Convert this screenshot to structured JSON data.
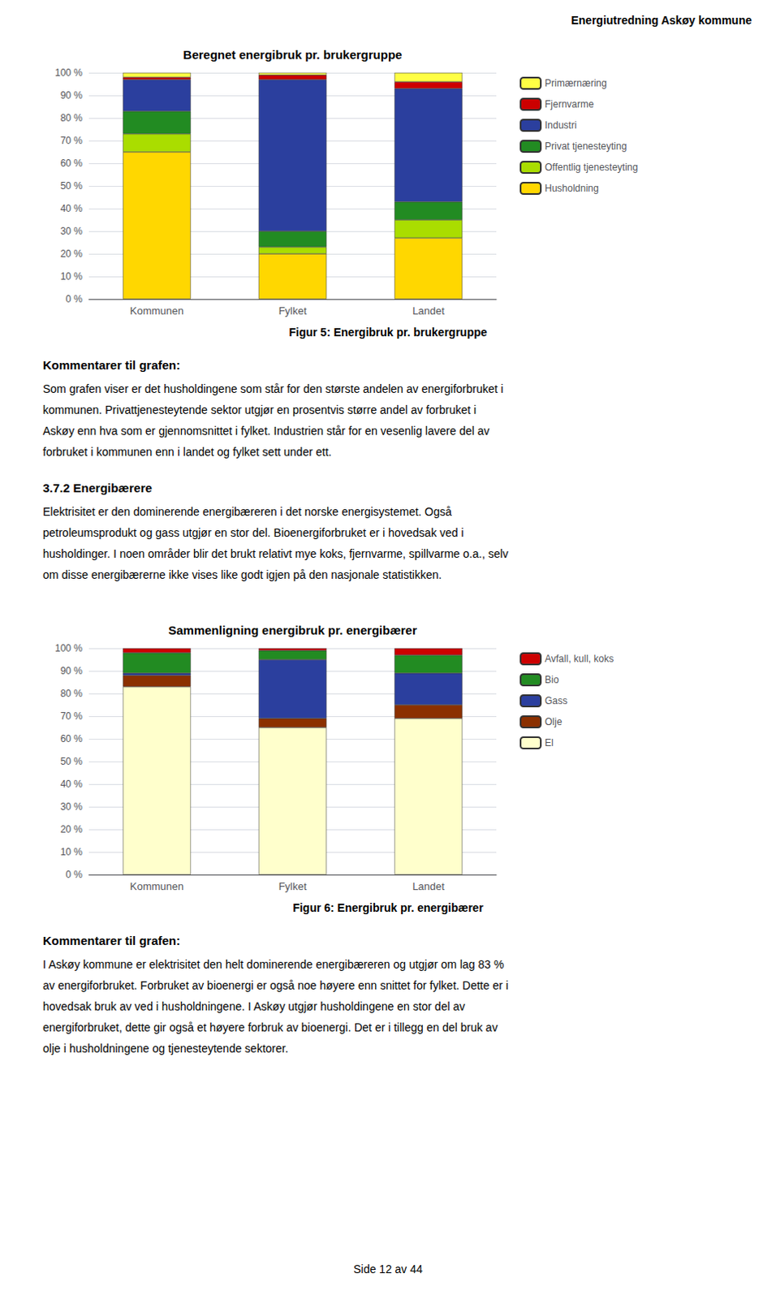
{
  "header": "Energiutredning Askøy kommune",
  "footer": "Side 12 av 44",
  "chart_data": [
    {
      "type": "bar",
      "stacked": true,
      "orientation": "vertical",
      "title": "Beregnet energibruk pr. brukergruppe",
      "categories": [
        "Kommunen",
        "Fylket",
        "Landet"
      ],
      "series": [
        {
          "name": "Husholdning",
          "color": "#FFD700",
          "values": [
            65,
            20,
            27
          ]
        },
        {
          "name": "Offentlig tjenesteyting",
          "color": "#AADD00",
          "values": [
            8,
            3,
            8
          ]
        },
        {
          "name": "Privat tjenesteyting",
          "color": "#228B22",
          "values": [
            10,
            7,
            8
          ]
        },
        {
          "name": "Industri",
          "color": "#2B3F9E",
          "values": [
            14,
            67,
            50
          ]
        },
        {
          "name": "Fjernvarme",
          "color": "#CC0000",
          "values": [
            1,
            2,
            3
          ]
        },
        {
          "name": "Primærnæring",
          "color": "#FFFF44",
          "values": [
            2,
            1,
            4
          ]
        }
      ],
      "ylim": [
        0,
        100
      ],
      "yticks": [
        {
          "value": 0,
          "label": "0 %"
        },
        {
          "value": 10,
          "label": "10 %"
        },
        {
          "value": 20,
          "label": "20 %"
        },
        {
          "value": 30,
          "label": "30 %"
        },
        {
          "value": 40,
          "label": "40 %"
        },
        {
          "value": 50,
          "label": "50 %"
        },
        {
          "value": 60,
          "label": "60 %"
        },
        {
          "value": 70,
          "label": "70 %"
        },
        {
          "value": 80,
          "label": "80 %"
        },
        {
          "value": 90,
          "label": "90 %"
        },
        {
          "value": 100,
          "label": "100 %"
        }
      ],
      "grid": true,
      "legend": "right",
      "annotations": [
        "Figur 5: Energibruk pr. brukergruppe",
        [
          "Kommentarer til grafen:",
          "Som grafen viser er det husholdingene som står for den største andelen av energiforbruket i",
          "kommunen. Privattjenesteytende sektor utgjør en prosentvis større andel av forbruket i",
          "Askøy enn hva som er gjennomsnittet i fylket. Industrien står for en vesenlig lavere del av",
          "forbruket i kommunen enn i landet og fylket sett under ett."
        ],
        [
          "3.7.2 Energibærere",
          "Elektrisitet er den dominerende energibæreren i det norske energisystemet. Også",
          "petroleumsprodukt og gass utgjør en stor del. Bioenergiforbruket er i hovedsak ved i",
          "husholdinger. I noen områder blir det brukt relativt mye koks, fjernvarme, spillvarme o.a., selv",
          "om disse energibærerne ikke vises like godt igjen på den nasjonale statistikken."
        ]
      ]
    },
    {
      "type": "bar",
      "stacked": true,
      "orientation": "vertical",
      "title": "Sammenligning energibruk pr. energibærer",
      "categories": [
        "Kommunen",
        "Fylket",
        "Landet"
      ],
      "series": [
        {
          "name": "El",
          "color": "#FFFFCC",
          "values": [
            83,
            65,
            69
          ]
        },
        {
          "name": "Olje",
          "color": "#8B3000",
          "values": [
            5,
            4,
            6
          ]
        },
        {
          "name": "Gass",
          "color": "#2B3F9E",
          "values": [
            1,
            26,
            14
          ]
        },
        {
          "name": "Bio",
          "color": "#228B22",
          "values": [
            9,
            4,
            8
          ]
        },
        {
          "name": "Avfall, kull, koks",
          "color": "#CC0000",
          "values": [
            2,
            1,
            3
          ]
        }
      ],
      "ylim": [
        0,
        100
      ],
      "yticks": [
        {
          "value": 0,
          "label": "0 %"
        },
        {
          "value": 10,
          "label": "10 %"
        },
        {
          "value": 20,
          "label": "20 %"
        },
        {
          "value": 30,
          "label": "30 %"
        },
        {
          "value": 40,
          "label": "40 %"
        },
        {
          "value": 50,
          "label": "50 %"
        },
        {
          "value": 60,
          "label": "60 %"
        },
        {
          "value": 70,
          "label": "70 %"
        },
        {
          "value": 80,
          "label": "80 %"
        },
        {
          "value": 90,
          "label": "90 %"
        },
        {
          "value": 100,
          "label": "100 %"
        }
      ],
      "grid": true,
      "legend": "right",
      "annotations": [
        "Figur 6: Energibruk pr. energibærer",
        [
          "Kommentarer til grafen:",
          "I Askøy kommune er elektrisitet den helt dominerende energibæreren og utgjør om lag 83 %",
          "av energiforbruket. Forbruket av bioenergi er også noe høyere enn snittet for fylket. Dette er i",
          "hovedsak bruk av ved i husholdningene. I Askøy utgjør husholdingene en stor del av",
          "energiforbruket, dette gir også et høyere forbruk av bioenergi. Det er i tillegg en del bruk av",
          "olje i husholdningene og tjenesteytende sektorer."
        ]
      ]
    }
  ]
}
